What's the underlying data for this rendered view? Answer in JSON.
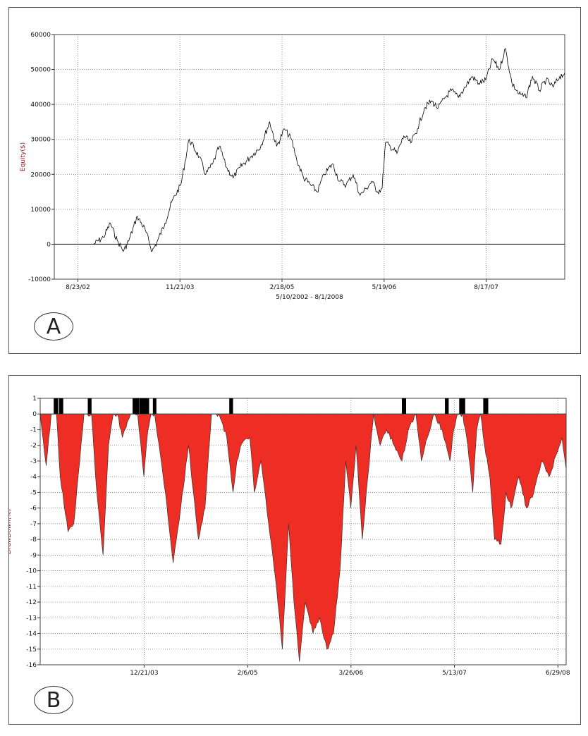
{
  "colors": {
    "line": "#000000",
    "drawdown_fill": "#ee2e24",
    "grid": "#666666",
    "frame": "#555555"
  },
  "panels": {
    "a": {
      "badge": "A"
    },
    "b": {
      "badge": "B"
    }
  },
  "chart_data": [
    {
      "type": "line",
      "panel": "A",
      "ylabel": "Equity($)",
      "xlabel": "5/10/2002 - 8/1/2008",
      "ylim": [
        -10000,
        60000
      ],
      "yticks": [
        -10000,
        0,
        10000,
        20000,
        30000,
        40000,
        50000,
        60000
      ],
      "ytick_labels": [
        "-10000",
        "0",
        "10000",
        "20000",
        "30000",
        "40000",
        "50000",
        "60000"
      ],
      "xlim": [
        "2002-05-10",
        "2008-08-01"
      ],
      "xticks": [
        "2002-08-23",
        "2003-11-21",
        "2005-02-18",
        "2006-05-19",
        "2007-08-17"
      ],
      "xtick_labels": [
        "8/23/02",
        "11/21/03",
        "2/18/05",
        "5/19/06",
        "8/17/07"
      ],
      "grid": true,
      "series": [
        {
          "x": [
            "2002-11-01",
            "2002-12-15",
            "2003-01-15",
            "2003-02-15",
            "2003-03-15",
            "2003-04-10",
            "2003-05-15",
            "2003-06-20",
            "2003-07-20",
            "2003-08-10",
            "2003-09-15",
            "2003-10-15",
            "2003-11-25",
            "2004-01-01",
            "2004-02-15",
            "2004-03-15",
            "2004-04-15",
            "2004-05-15",
            "2004-06-15",
            "2004-07-15",
            "2004-08-15",
            "2004-10-01",
            "2004-11-15",
            "2004-12-25",
            "2005-01-25",
            "2005-03-01",
            "2005-04-01",
            "2005-04-25",
            "2005-05-25",
            "2005-06-25",
            "2005-07-25",
            "2005-08-25",
            "2005-10-01",
            "2005-11-01",
            "2005-12-01",
            "2006-01-01",
            "2006-02-01",
            "2006-03-01",
            "2006-03-25",
            "2006-04-20",
            "2006-05-10",
            "2006-05-25",
            "2006-06-15",
            "2006-07-15",
            "2006-08-15",
            "2006-09-15",
            "2006-10-15",
            "2006-11-15",
            "2006-12-15",
            "2007-01-15",
            "2007-02-15",
            "2007-03-15",
            "2007-04-15",
            "2007-05-15",
            "2007-06-15",
            "2007-07-15",
            "2007-08-15",
            "2007-09-15",
            "2007-10-15",
            "2007-11-10",
            "2007-12-10",
            "2008-01-10",
            "2008-02-10",
            "2008-03-10",
            "2008-04-10",
            "2008-05-10",
            "2008-06-10",
            "2008-07-10",
            "2008-08-01"
          ],
          "y": [
            0,
            2000,
            6000,
            1000,
            -2000,
            1500,
            8000,
            4000,
            -2000,
            500,
            6000,
            12000,
            17000,
            30000,
            25000,
            20000,
            23000,
            28000,
            22000,
            19000,
            22000,
            25000,
            28000,
            35000,
            28000,
            33000,
            30000,
            24000,
            19000,
            17000,
            15000,
            20000,
            23000,
            18000,
            17000,
            20000,
            14000,
            16000,
            18000,
            15000,
            16000,
            29000,
            28000,
            26000,
            31000,
            29000,
            33000,
            39000,
            41000,
            39000,
            42000,
            44000,
            42000,
            45000,
            48000,
            46000,
            47000,
            53000,
            50000,
            56000,
            46000,
            43000,
            42000,
            48000,
            44000,
            47000,
            45000,
            48000,
            49000
          ]
        }
      ]
    },
    {
      "type": "area",
      "panel": "B",
      "ylabel": "DrawDown(%)",
      "ylim": [
        -16,
        1
      ],
      "yticks": [
        -16,
        -15,
        -14,
        -13,
        -12,
        -11,
        -10,
        -9,
        -8,
        -7,
        -6,
        -5,
        -4,
        -3,
        -2,
        -1,
        0,
        1
      ],
      "ytick_labels": [
        "-16",
        "-15",
        "-14",
        "-13",
        "-12",
        "-11",
        "-10",
        "-9",
        "-8",
        "-7",
        "-6",
        "-5",
        "-4",
        "-3",
        "-2",
        "-1",
        "0",
        "1"
      ],
      "xlim": [
        "2002-11-01",
        "2008-08-01"
      ],
      "xticks": [
        "2003-12-21",
        "2005-02-06",
        "2006-03-26",
        "2007-05-13",
        "2008-06-29"
      ],
      "xtick_labels": [
        "12/21/03",
        "2/6/05",
        "3/26/06",
        "5/13/07",
        "6/29/08"
      ],
      "grid": true,
      "series": [
        {
          "x": [
            "2002-11-01",
            "2002-11-25",
            "2002-12-15",
            "2003-01-05",
            "2003-01-20",
            "2003-02-20",
            "2003-03-15",
            "2003-04-08",
            "2003-04-25",
            "2003-05-25",
            "2003-06-15",
            "2003-07-10",
            "2003-08-01",
            "2003-08-20",
            "2003-09-05",
            "2003-09-25",
            "2003-10-15",
            "2003-10-28",
            "2003-11-10",
            "2003-11-25",
            "2003-12-20",
            "2004-01-05",
            "2004-01-18",
            "2004-02-01",
            "2004-03-15",
            "2004-04-15",
            "2004-05-15",
            "2004-06-15",
            "2004-07-05",
            "2004-07-25",
            "2004-08-20",
            "2004-09-15",
            "2004-10-15",
            "2004-11-15",
            "2004-12-10",
            "2004-12-25",
            "2005-01-10",
            "2005-02-15",
            "2005-03-05",
            "2005-04-01",
            "2005-05-01",
            "2005-06-01",
            "2005-06-25",
            "2005-07-20",
            "2005-08-10",
            "2005-09-01",
            "2005-09-25",
            "2005-10-25",
            "2005-11-20",
            "2005-12-20",
            "2006-01-15",
            "2006-02-10",
            "2006-03-05",
            "2006-03-25",
            "2006-04-15",
            "2006-05-10",
            "2006-06-01",
            "2006-06-25",
            "2006-07-20",
            "2006-08-15",
            "2006-09-15",
            "2006-10-15",
            "2006-11-10",
            "2006-12-10",
            "2007-01-01",
            "2007-01-25",
            "2007-02-20",
            "2007-03-25",
            "2007-04-25",
            "2007-05-10",
            "2007-05-25",
            "2007-06-15",
            "2007-07-05",
            "2007-07-25",
            "2007-08-10",
            "2007-08-25",
            "2007-09-10",
            "2007-10-01",
            "2007-10-20",
            "2007-11-15",
            "2007-12-05",
            "2007-12-25",
            "2008-01-25",
            "2008-02-25",
            "2008-03-25",
            "2008-04-25",
            "2008-05-25",
            "2008-06-25",
            "2008-07-15",
            "2008-08-01"
          ],
          "y": [
            0,
            -3.3,
            0,
            0,
            -4,
            -7.5,
            -7,
            -3,
            0,
            0,
            -5,
            -9,
            -2,
            0,
            0,
            -1.5,
            -0.5,
            0,
            0,
            0,
            -4,
            -1,
            0,
            0,
            -5,
            -9.5,
            -6,
            -2,
            -5,
            -8,
            -6,
            0,
            0,
            -1.5,
            -5,
            -3,
            -2,
            -1.5,
            -5,
            -3,
            -7,
            -11,
            -15,
            -7,
            -12,
            -15.8,
            -12,
            -14,
            -13,
            -15,
            -14,
            -10,
            -3,
            -6,
            -2,
            -8,
            -4,
            0,
            -2,
            -1,
            -2,
            -3,
            -1,
            0,
            -3,
            -1.5,
            0,
            -1,
            -3,
            -1,
            0,
            0,
            -2,
            -5,
            -1,
            0,
            -2,
            -4,
            -8,
            -8.3,
            -5,
            -6,
            -4,
            -6,
            -5,
            -3,
            -4,
            -2.5,
            -1.5,
            -3.5
          ]
        }
      ],
      "flat_periods": [
        [
          "2002-12-25",
          "2003-01-12"
        ],
        [
          "2003-01-15",
          "2003-02-01"
        ],
        [
          "2003-05-10",
          "2003-05-25"
        ],
        [
          "2003-11-05",
          "2003-11-30"
        ],
        [
          "2003-12-01",
          "2004-01-10"
        ],
        [
          "2004-01-25",
          "2004-02-08"
        ],
        [
          "2004-11-25",
          "2004-12-10"
        ],
        [
          "2006-10-15",
          "2006-11-01"
        ],
        [
          "2007-04-05",
          "2007-04-20"
        ],
        [
          "2007-06-01",
          "2007-06-25"
        ],
        [
          "2007-09-05",
          "2007-09-25"
        ]
      ]
    }
  ]
}
